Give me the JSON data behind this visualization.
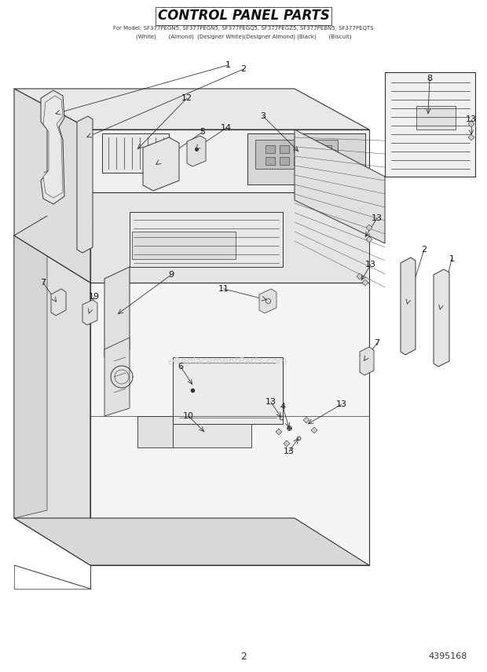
{
  "title": "CONTROL PANEL PARTS",
  "subtitle1": "For Model: SF377PEGN5, SF377PEGN5, SF377PEGQ5, SF377PEGZ5, SF377PEBN5, SF377PEQTS",
  "subtitle2": "(White)       (Almond)  (Designer White)(Designer Almond) (Black)       (Biscuit)",
  "page_number": "2",
  "part_number": "4395168",
  "watermark": "eReplacementParts.com",
  "bg_color": "#ffffff",
  "lc": "#333333",
  "lw": 0.8
}
